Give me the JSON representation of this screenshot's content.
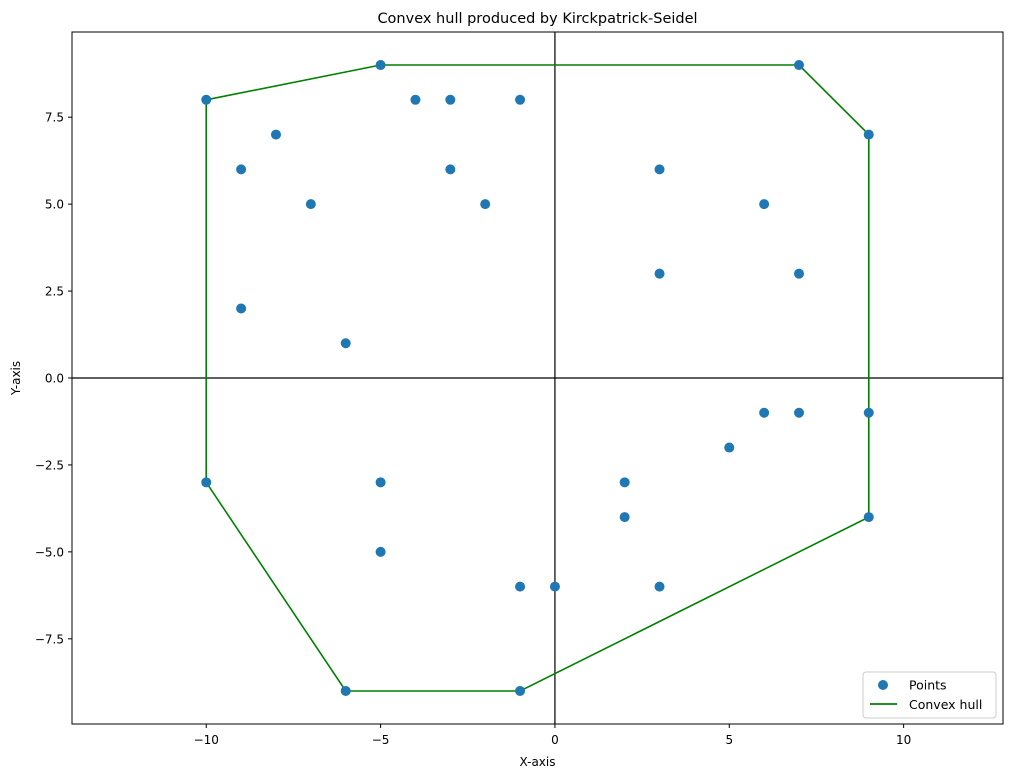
{
  "chart_data": {
    "type": "scatter",
    "title": "Convex hull produced by Kirckpatrick-Seidel",
    "xlabel": "X-axis",
    "ylabel": "Y-axis",
    "xlim": [
      -13.85,
      12.85
    ],
    "ylim": [
      -9.95,
      9.95
    ],
    "xticks": [
      -10,
      -5,
      0,
      5,
      10
    ],
    "xtick_labels": [
      "−10",
      "−5",
      "0",
      "5",
      "10"
    ],
    "yticks": [
      -7.5,
      -5.0,
      -2.5,
      0.0,
      2.5,
      5.0,
      7.5
    ],
    "ytick_labels": [
      "−7.5",
      "−5.0",
      "−2.5",
      "0.0",
      "2.5",
      "5.0",
      "7.5"
    ],
    "grid": false,
    "reference_lines": {
      "x": 0,
      "y": 0,
      "color": "#000000"
    },
    "legend": {
      "position": "bottom-right",
      "entries": [
        "Points",
        "Convex hull"
      ]
    },
    "series": [
      {
        "name": "Points",
        "kind": "scatter",
        "color": "#1f77b4",
        "points": [
          [
            -10,
            8
          ],
          [
            -5,
            9
          ],
          [
            -4,
            8
          ],
          [
            -3,
            8
          ],
          [
            -1,
            8
          ],
          [
            7,
            9
          ],
          [
            -8,
            7
          ],
          [
            9,
            7
          ],
          [
            -9,
            6
          ],
          [
            -3,
            6
          ],
          [
            3,
            6
          ],
          [
            -7,
            5
          ],
          [
            -2,
            5
          ],
          [
            6,
            5
          ],
          [
            3,
            3
          ],
          [
            7,
            3
          ],
          [
            -9,
            2
          ],
          [
            -6,
            1
          ],
          [
            6,
            -1
          ],
          [
            7,
            -1
          ],
          [
            9,
            -1
          ],
          [
            5,
            -2
          ],
          [
            -10,
            -3
          ],
          [
            -5,
            -3
          ],
          [
            2,
            -3
          ],
          [
            2,
            -4
          ],
          [
            9,
            -4
          ],
          [
            -5,
            -5
          ],
          [
            -1,
            -6
          ],
          [
            0,
            -6
          ],
          [
            3,
            -6
          ],
          [
            -6,
            -9
          ],
          [
            -1,
            -9
          ]
        ]
      },
      {
        "name": "Convex hull",
        "kind": "line",
        "color": "#008000",
        "points": [
          [
            -10,
            8
          ],
          [
            -5,
            9
          ],
          [
            7,
            9
          ],
          [
            9,
            7
          ],
          [
            9,
            -1
          ],
          [
            9,
            -4
          ],
          [
            -1,
            -9
          ],
          [
            -6,
            -9
          ],
          [
            -10,
            -3
          ],
          [
            -10,
            8
          ]
        ]
      }
    ]
  }
}
